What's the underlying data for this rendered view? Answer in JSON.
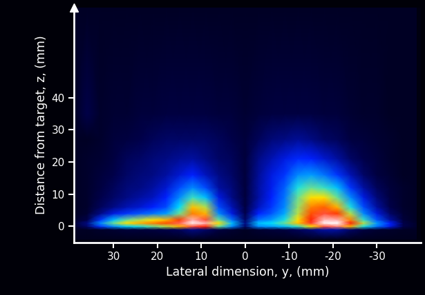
{
  "chart_data": {
    "type": "heatmap",
    "x_label": "Lateral dimension, y, (mm)",
    "y_label": "Distance from target, z, (mm)",
    "xlim": [
      39,
      -40
    ],
    "ylim": [
      -5,
      68
    ],
    "xticks": [
      30,
      20,
      10,
      0,
      -10,
      -20,
      -30
    ],
    "yticks": [
      0,
      10,
      20,
      30,
      40
    ],
    "grid": false,
    "heatmap": {
      "x": [
        39,
        36,
        33,
        30,
        27,
        24,
        21,
        18,
        15,
        12,
        9,
        6,
        3,
        0,
        -3,
        -6,
        -9,
        -12,
        -15,
        -18,
        -21,
        -24,
        -27,
        -30,
        -33,
        -36,
        -39
      ],
      "y": [
        -4,
        -1,
        0,
        1,
        2,
        4,
        6,
        9,
        12,
        16,
        21,
        27,
        35,
        68
      ],
      "range": [
        0,
        100
      ],
      "cells": [
        [
          2,
          2,
          2,
          2,
          2,
          2,
          2,
          2,
          2,
          2,
          2,
          2,
          2,
          2,
          2,
          2,
          2,
          2,
          2,
          2,
          2,
          2,
          2,
          2,
          2,
          2,
          2
        ],
        [
          3,
          3,
          4,
          5,
          6,
          6,
          7,
          8,
          9,
          12,
          10,
          7,
          5,
          3,
          5,
          6,
          7,
          9,
          11,
          14,
          14,
          10,
          7,
          5,
          4,
          3,
          3
        ],
        [
          5,
          10,
          22,
          30,
          36,
          40,
          45,
          50,
          60,
          80,
          75,
          45,
          30,
          10,
          30,
          32,
          35,
          42,
          55,
          80,
          85,
          60,
          40,
          28,
          18,
          8,
          4
        ],
        [
          5,
          12,
          30,
          45,
          55,
          60,
          65,
          70,
          82,
          98,
          90,
          55,
          35,
          12,
          35,
          38,
          45,
          58,
          78,
          98,
          100,
          75,
          50,
          32,
          20,
          8,
          4
        ],
        [
          4,
          8,
          22,
          35,
          45,
          50,
          55,
          60,
          72,
          90,
          80,
          45,
          28,
          10,
          28,
          32,
          40,
          55,
          75,
          92,
          90,
          65,
          42,
          25,
          14,
          6,
          3
        ],
        [
          3,
          5,
          12,
          18,
          22,
          25,
          28,
          32,
          45,
          65,
          60,
          30,
          18,
          8,
          20,
          25,
          33,
          50,
          70,
          80,
          72,
          50,
          30,
          18,
          10,
          5,
          3
        ],
        [
          3,
          4,
          9,
          12,
          15,
          17,
          20,
          24,
          38,
          58,
          50,
          24,
          15,
          7,
          16,
          22,
          30,
          48,
          65,
          68,
          60,
          40,
          24,
          14,
          8,
          4,
          3
        ],
        [
          3,
          4,
          8,
          10,
          12,
          14,
          16,
          20,
          30,
          42,
          35,
          18,
          12,
          6,
          14,
          20,
          28,
          45,
          55,
          55,
          45,
          30,
          18,
          11,
          7,
          4,
          3
        ],
        [
          3,
          4,
          7,
          9,
          11,
          12,
          14,
          17,
          24,
          30,
          24,
          14,
          11,
          6,
          14,
          19,
          26,
          40,
          45,
          42,
          35,
          22,
          14,
          9,
          6,
          4,
          3
        ],
        [
          3,
          4,
          6,
          8,
          10,
          11,
          12,
          14,
          17,
          20,
          16,
          12,
          10,
          6,
          13,
          18,
          22,
          30,
          32,
          28,
          22,
          15,
          10,
          7,
          5,
          3,
          3
        ],
        [
          3,
          4,
          5,
          7,
          9,
          10,
          11,
          12,
          13,
          14,
          12,
          10,
          9,
          6,
          12,
          15,
          18,
          21,
          20,
          17,
          14,
          10,
          8,
          6,
          4,
          3,
          3
        ],
        [
          3,
          3,
          4,
          6,
          7,
          8,
          9,
          10,
          10,
          10,
          10,
          9,
          8,
          6,
          9,
          11,
          12,
          13,
          12,
          10,
          9,
          7,
          6,
          5,
          4,
          3,
          3
        ],
        [
          3,
          8,
          4,
          5,
          5,
          6,
          6,
          7,
          7,
          7,
          7,
          6,
          6,
          5,
          6,
          7,
          7,
          7,
          7,
          6,
          6,
          5,
          4,
          4,
          3,
          3,
          3
        ],
        [
          3,
          3,
          3,
          3,
          3,
          3,
          3,
          3,
          3,
          3,
          3,
          3,
          3,
          3,
          3,
          3,
          3,
          3,
          3,
          3,
          3,
          3,
          3,
          3,
          3,
          3,
          3
        ]
      ]
    }
  }
}
